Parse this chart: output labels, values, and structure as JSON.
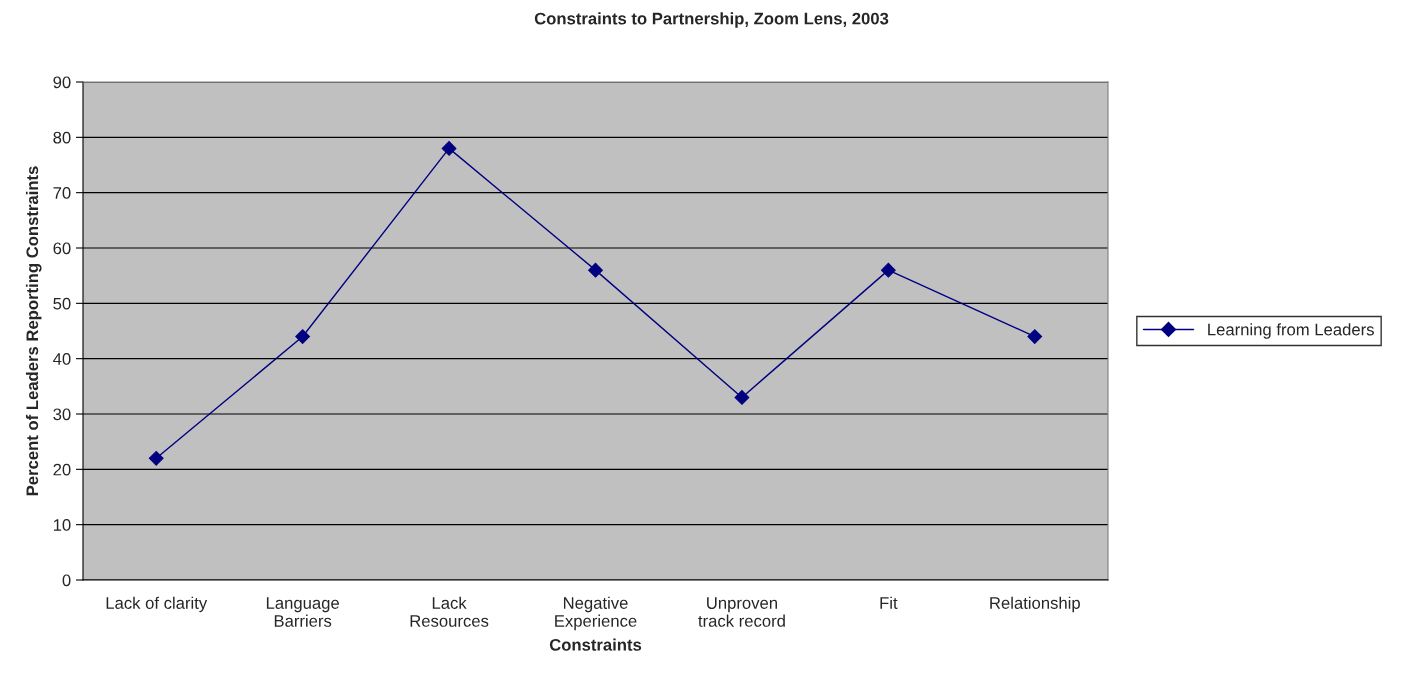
{
  "chart_data": {
    "type": "line",
    "title": "Constraints to Partnership, Zoom Lens, 2003",
    "xlabel": "Constraints",
    "ylabel": "Percent of Leaders Reporting Constraints",
    "categories": [
      "Lack of clarity",
      "Language\nBarriers",
      "Lack\nResources",
      "Negative\nExperience",
      "Unproven\ntrack record",
      "Fit",
      "Relationship"
    ],
    "series": [
      {
        "name": "Learning from Leaders",
        "color": "#000080",
        "values": [
          22,
          44,
          78,
          56,
          33,
          56,
          44
        ]
      }
    ],
    "ylim": [
      0,
      90
    ],
    "yticks": [
      0,
      10,
      20,
      30,
      40,
      50,
      60,
      70,
      80,
      90
    ],
    "grid": "y",
    "legend": "right",
    "marker": "diamond",
    "line_style": "solid"
  }
}
